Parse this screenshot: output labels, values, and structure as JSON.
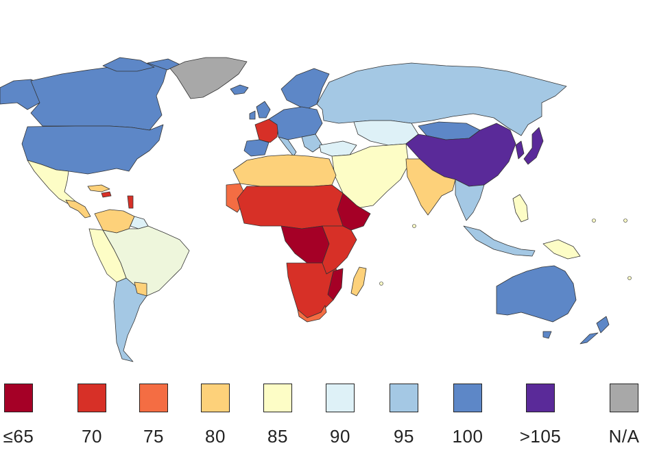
{
  "colors": {
    "bin_le65": "#a50026",
    "bin_70": "#d73027",
    "bin_75": "#f46d43",
    "bin_80": "#fdd17a",
    "bin_85": "#fdfdc6",
    "bin_90": "#def1f7",
    "bin_95": "#a4c8e4",
    "bin_100": "#5d87c7",
    "bin_gt105": "#5a2a99",
    "na": "#a8a8a8"
  },
  "legend": [
    {
      "label": "≤65",
      "color": "#a50026"
    },
    {
      "label": "70",
      "color": "#d73027"
    },
    {
      "label": "75",
      "color": "#f46d43"
    },
    {
      "label": "80",
      "color": "#fdd17a"
    },
    {
      "label": "85",
      "color": "#fdfdc6"
    },
    {
      "label": "90",
      "color": "#def1f7"
    },
    {
      "label": "95",
      "color": "#a4c8e4"
    },
    {
      "label": "100",
      "color": "#5d87c7"
    },
    {
      "label": ">105",
      "color": "#5a2a99"
    },
    {
      "label": "N/A",
      "color": "#a8a8a8"
    }
  ]
}
